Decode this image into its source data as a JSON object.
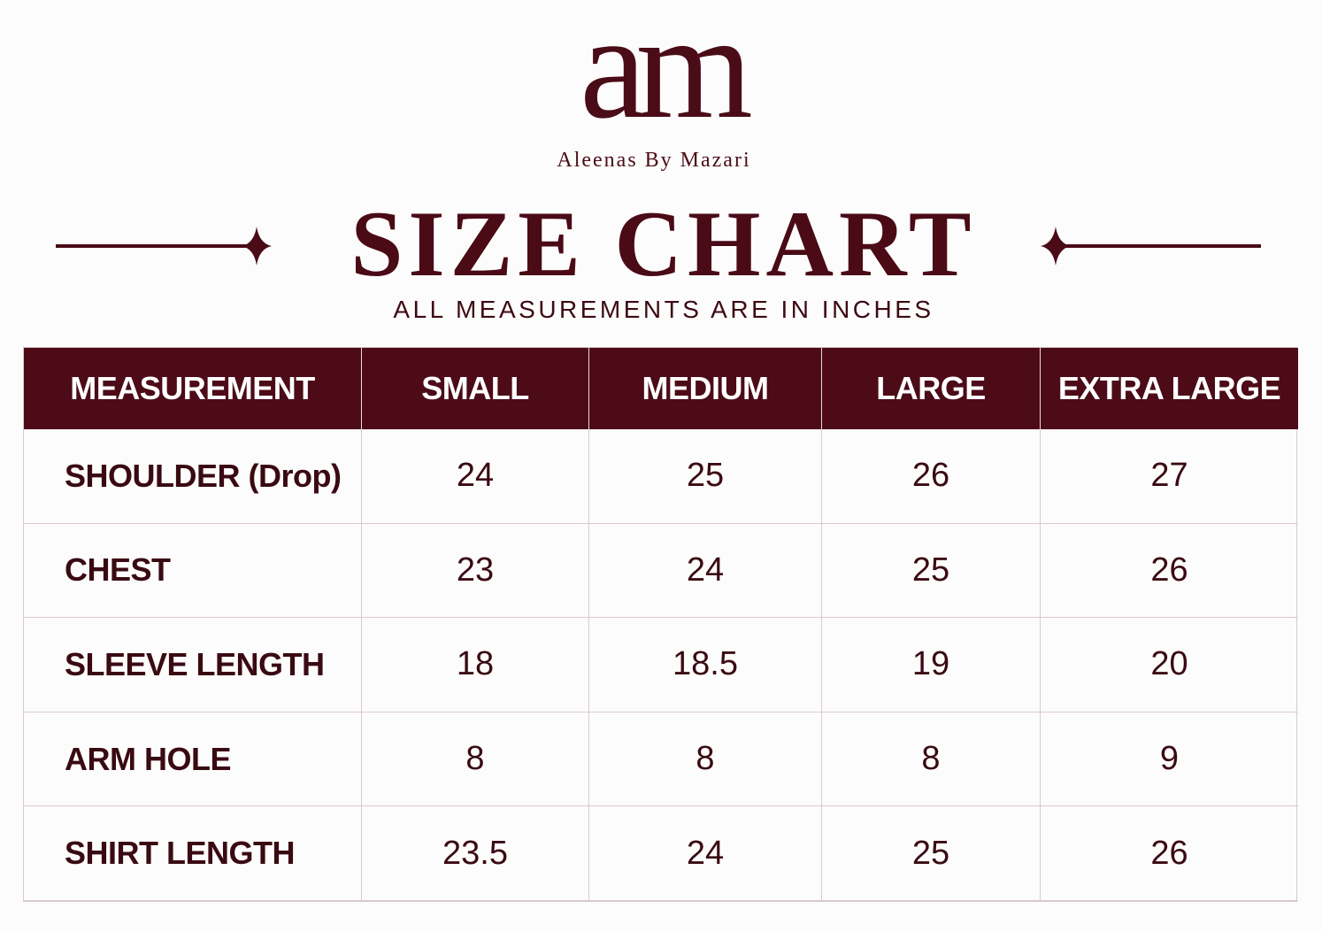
{
  "brand": {
    "monogram": "am",
    "name": "Aleenas By Mazari"
  },
  "header": {
    "title": "SIZE CHART",
    "subtitle": "ALL MEASUREMENTS ARE IN INCHES"
  },
  "table": {
    "header": [
      "MEASUREMENT",
      "SMALL",
      "MEDIUM",
      "LARGE",
      "EXTRA LARGE"
    ],
    "rows": [
      [
        "SHOULDER (Drop)",
        24,
        25,
        26,
        27
      ],
      [
        "CHEST",
        23,
        24,
        25,
        26
      ],
      [
        "SLEEVE LENGTH",
        18,
        18.5,
        19,
        20
      ],
      [
        "ARM HOLE",
        8,
        8,
        8,
        9
      ],
      [
        "SHIRT LENGTH",
        23.5,
        24,
        25,
        26
      ]
    ]
  }
}
